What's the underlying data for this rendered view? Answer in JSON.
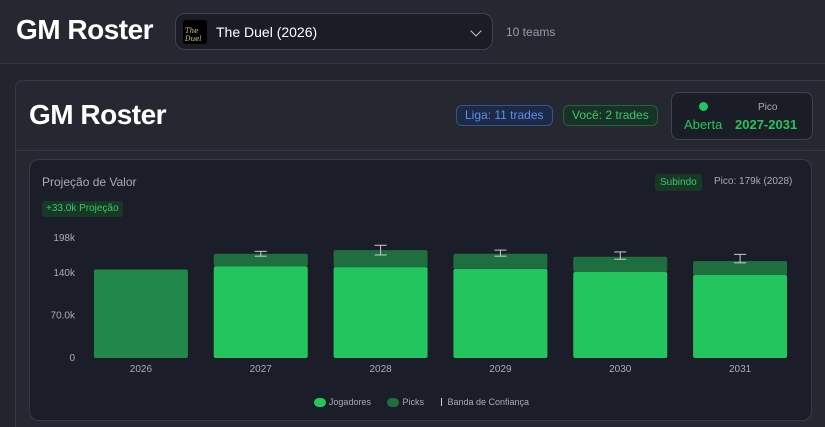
{
  "app": {
    "title": "GM Roster"
  },
  "league_select": {
    "logo_text": "The Duel",
    "selected": "The Duel (2026)"
  },
  "team_count": "10 teams",
  "panel": {
    "title": "GM Roster",
    "pill_liga": "Liga: 11 trades",
    "pill_voce": "Você: 2 trades",
    "status_label": "Aberta",
    "peak_caption": "Pico",
    "peak_range": "2027-2031"
  },
  "chart_card": {
    "title": "Projeção de Valor",
    "trend_badge": "Subindo",
    "peak_info": "Pico: 179k (2028)",
    "projection_badge": "+33.0k Projeção"
  },
  "colors": {
    "players": "#22c55e",
    "picks": "#1f6e3f",
    "current_year": "#21884a",
    "error_bar": "#c9cbd2"
  },
  "chart_data": {
    "type": "bar",
    "stacked": true,
    "categories": [
      "2026",
      "2027",
      "2028",
      "2029",
      "2030",
      "2031"
    ],
    "series": [
      {
        "name": "Jogadores",
        "values": [
          146,
          151,
          150,
          147,
          142,
          137
        ]
      },
      {
        "name": "Picks",
        "values": [
          0,
          21,
          28,
          25,
          25,
          23
        ]
      }
    ],
    "confidence_band": [
      null,
      [
        168,
        176
      ],
      [
        170,
        186
      ],
      [
        168,
        178
      ],
      [
        163,
        175
      ],
      [
        157,
        171
      ]
    ],
    "y_ticks": [
      0,
      70,
      140,
      198
    ],
    "y_tick_labels": [
      "0",
      "70.0k",
      "140k",
      "198k"
    ],
    "ylim": [
      0,
      198
    ],
    "legend": [
      "Jogadores",
      "Picks",
      "Banda de Confiança"
    ],
    "legend_position": "bottom"
  }
}
